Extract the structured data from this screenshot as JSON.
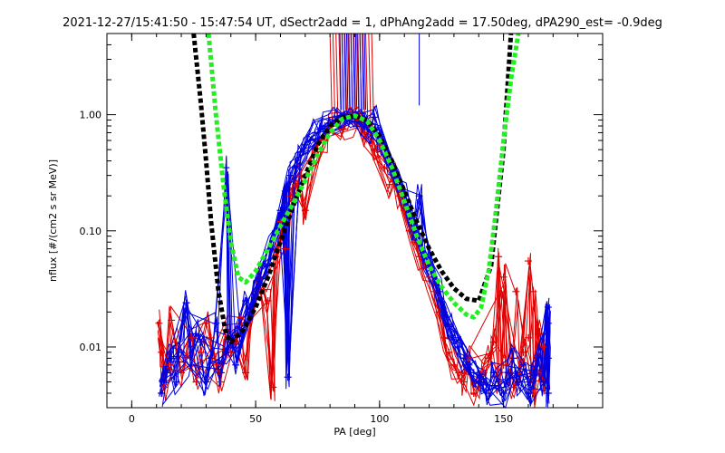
{
  "chart_data": {
    "type": "line",
    "title": "2021-12-27/15:41:50 - 15:47:54 UT, dSectr2add = 1, dPhAng2add = 17.50deg, dPA290_est=  -0.9deg",
    "xlabel": "PA [deg]",
    "ylabel": "nflux [#/(cm2 s sr MeV)]",
    "xlim": [
      -10,
      190
    ],
    "ylim": [
      0.003,
      5.0
    ],
    "yscale": "log",
    "grid": false,
    "x_ticks": [
      0,
      50,
      100,
      150
    ],
    "x_tick_labels": [
      "0",
      "50",
      "100",
      "150"
    ],
    "y_ticks": [
      0.01,
      0.1,
      1.0
    ],
    "y_tick_labels": [
      "0.01",
      "0.10",
      "1.00"
    ],
    "colors": {
      "red_series": "#e00000",
      "blue_series": "#0000e0",
      "black_fit": "#000000",
      "green_fit": "#22ee22",
      "axes": "#000000",
      "background": "#ffffff"
    },
    "series": [
      {
        "color": "#000000",
        "style": "thick dashed",
        "x": [
          25,
          28,
          30,
          32,
          35,
          38,
          40,
          45,
          50,
          55,
          60,
          65,
          70,
          75,
          80,
          85,
          90,
          95,
          100,
          105,
          110,
          115,
          120,
          125,
          130,
          135,
          140,
          145,
          150,
          153
        ],
        "y": [
          5.0,
          1.2,
          0.4,
          0.12,
          0.03,
          0.013,
          0.011,
          0.014,
          0.022,
          0.04,
          0.08,
          0.16,
          0.3,
          0.55,
          0.8,
          0.95,
          0.98,
          0.9,
          0.65,
          0.4,
          0.22,
          0.12,
          0.07,
          0.045,
          0.032,
          0.026,
          0.025,
          0.05,
          0.5,
          5.0
        ]
      },
      {
        "color": "#22ee22",
        "style": "thick dashed",
        "x": [
          31,
          34,
          37,
          40,
          43,
          46,
          50,
          55,
          60,
          65,
          70,
          75,
          80,
          85,
          90,
          95,
          100,
          105,
          110,
          115,
          120,
          125,
          130,
          135,
          138,
          141,
          144,
          147,
          150,
          153,
          156
        ],
        "y": [
          5.0,
          1.0,
          0.25,
          0.08,
          0.04,
          0.036,
          0.045,
          0.07,
          0.11,
          0.17,
          0.27,
          0.45,
          0.7,
          0.92,
          0.98,
          0.88,
          0.6,
          0.35,
          0.18,
          0.09,
          0.05,
          0.033,
          0.024,
          0.019,
          0.018,
          0.022,
          0.045,
          0.15,
          0.6,
          2.0,
          5.0
        ]
      }
    ],
    "red_plus_markers": [
      [
        11,
        0.016
      ],
      [
        12,
        0.009
      ],
      [
        13,
        0.0045
      ],
      [
        15,
        0.007
      ],
      [
        16,
        0.017
      ],
      [
        18,
        0.011
      ],
      [
        20,
        0.006
      ],
      [
        22,
        0.008
      ],
      [
        24,
        0.012
      ],
      [
        26,
        0.005
      ],
      [
        28,
        0.009
      ],
      [
        30,
        0.016
      ],
      [
        32,
        0.012
      ],
      [
        34,
        0.007
      ],
      [
        36,
        0.005
      ],
      [
        38,
        0.014
      ],
      [
        40,
        0.009
      ],
      [
        42,
        0.011
      ],
      [
        44,
        0.018
      ],
      [
        46,
        0.006
      ],
      [
        48,
        0.02
      ],
      [
        50,
        0.03
      ],
      [
        52,
        0.04
      ],
      [
        55,
        0.025
      ],
      [
        57,
        0.0045
      ],
      [
        58,
        0.06
      ],
      [
        60,
        0.12
      ],
      [
        62,
        0.07
      ],
      [
        64,
        0.2
      ],
      [
        66,
        0.25
      ],
      [
        68,
        0.3
      ],
      [
        70,
        0.15
      ],
      [
        72,
        0.4
      ],
      [
        75,
        0.5
      ],
      [
        78,
        0.6
      ],
      [
        80,
        0.8
      ],
      [
        82,
        0.9
      ],
      [
        85,
        0.75
      ],
      [
        88,
        0.95
      ],
      [
        90,
        0.85
      ],
      [
        92,
        0.9
      ],
      [
        94,
        0.7
      ],
      [
        96,
        0.8
      ],
      [
        98,
        0.5
      ],
      [
        100,
        0.55
      ],
      [
        102,
        0.35
      ],
      [
        104,
        0.25
      ],
      [
        106,
        0.3
      ],
      [
        108,
        0.2
      ],
      [
        110,
        0.15
      ],
      [
        112,
        0.1
      ],
      [
        114,
        0.08
      ],
      [
        116,
        0.06
      ],
      [
        118,
        0.05
      ],
      [
        120,
        0.04
      ],
      [
        122,
        0.03
      ],
      [
        124,
        0.02
      ],
      [
        126,
        0.012
      ],
      [
        128,
        0.009
      ],
      [
        130,
        0.007
      ],
      [
        132,
        0.006
      ],
      [
        134,
        0.005
      ],
      [
        136,
        0.008
      ],
      [
        138,
        0.004
      ],
      [
        140,
        0.0045
      ],
      [
        142,
        0.006
      ],
      [
        144,
        0.008
      ],
      [
        146,
        0.011
      ],
      [
        148,
        0.005
      ],
      [
        150,
        0.007
      ],
      [
        152,
        0.006
      ],
      [
        154,
        0.0045
      ],
      [
        156,
        0.005
      ],
      [
        158,
        0.009
      ],
      [
        160,
        0.055
      ],
      [
        162,
        0.004
      ],
      [
        164,
        0.006
      ],
      [
        166,
        0.005
      ],
      [
        148,
        0.06
      ],
      [
        150,
        0.04
      ],
      [
        155,
        0.03
      ],
      [
        160,
        0.012
      ],
      [
        162,
        0.03
      ],
      [
        164,
        0.013
      ],
      [
        166,
        0.01
      ]
    ],
    "blue_plus_markers": [
      [
        12,
        0.004
      ],
      [
        14,
        0.006
      ],
      [
        16,
        0.008
      ],
      [
        18,
        0.005
      ],
      [
        20,
        0.009
      ],
      [
        22,
        0.024
      ],
      [
        24,
        0.007
      ],
      [
        26,
        0.013
      ],
      [
        28,
        0.011
      ],
      [
        30,
        0.005
      ],
      [
        32,
        0.008
      ],
      [
        34,
        0.016
      ],
      [
        36,
        0.006
      ],
      [
        38,
        0.009
      ],
      [
        40,
        0.011
      ],
      [
        42,
        0.007
      ],
      [
        44,
        0.013
      ],
      [
        46,
        0.025
      ],
      [
        48,
        0.02
      ],
      [
        50,
        0.03
      ],
      [
        52,
        0.04
      ],
      [
        54,
        0.05
      ],
      [
        56,
        0.07
      ],
      [
        58,
        0.1
      ],
      [
        60,
        0.15
      ],
      [
        62,
        0.22
      ],
      [
        64,
        0.3
      ],
      [
        66,
        0.35
      ],
      [
        68,
        0.45
      ],
      [
        70,
        0.55
      ],
      [
        72,
        0.6
      ],
      [
        74,
        0.7
      ],
      [
        76,
        0.75
      ],
      [
        78,
        0.8
      ],
      [
        80,
        0.85
      ],
      [
        82,
        0.9
      ],
      [
        84,
        0.95
      ],
      [
        86,
        0.98
      ],
      [
        88,
        0.92
      ],
      [
        90,
        0.88
      ],
      [
        92,
        0.85
      ],
      [
        94,
        0.8
      ],
      [
        96,
        0.75
      ],
      [
        98,
        0.95
      ],
      [
        100,
        0.6
      ],
      [
        102,
        0.5
      ],
      [
        104,
        0.4
      ],
      [
        106,
        0.3
      ],
      [
        108,
        0.25
      ],
      [
        110,
        0.2
      ],
      [
        112,
        0.15
      ],
      [
        114,
        0.1
      ],
      [
        116,
        0.2
      ],
      [
        118,
        0.06
      ],
      [
        120,
        0.05
      ],
      [
        122,
        0.04
      ],
      [
        124,
        0.03
      ],
      [
        126,
        0.02
      ],
      [
        128,
        0.015
      ],
      [
        130,
        0.012
      ],
      [
        132,
        0.01
      ],
      [
        134,
        0.008
      ],
      [
        136,
        0.007
      ],
      [
        138,
        0.006
      ],
      [
        140,
        0.005
      ],
      [
        142,
        0.005
      ],
      [
        144,
        0.004
      ],
      [
        146,
        0.006
      ],
      [
        148,
        0.005
      ],
      [
        150,
        0.004
      ],
      [
        152,
        0.006
      ],
      [
        154,
        0.008
      ],
      [
        156,
        0.005
      ],
      [
        158,
        0.007
      ],
      [
        160,
        0.004
      ],
      [
        162,
        0.006
      ],
      [
        164,
        0.008
      ],
      [
        166,
        0.005
      ],
      [
        168,
        0.022
      ],
      [
        168,
        0.016
      ],
      [
        168,
        0.008
      ],
      [
        168,
        0.004
      ],
      [
        63,
        0.0055
      ],
      [
        38,
        0.35
      ]
    ],
    "spikes": {
      "red": {
        "x_from": 80,
        "x_to": 98
      },
      "blue": {
        "x_from": 84,
        "x_to": 94
      },
      "isolated_blue_x": 116
    }
  }
}
